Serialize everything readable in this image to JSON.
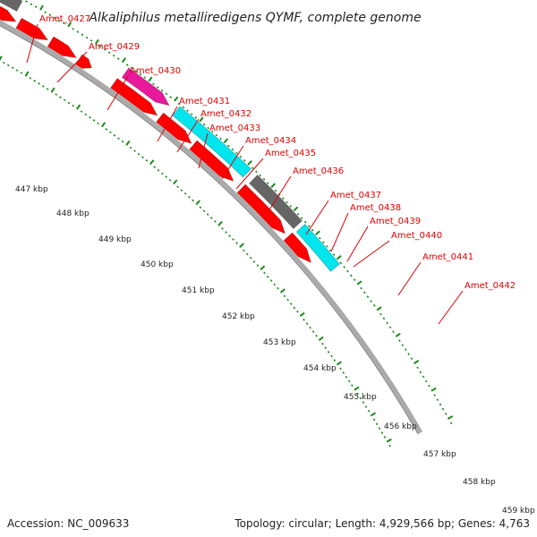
{
  "title": "Alkaliphilus metalliredigens QYMF, complete genome",
  "footer": {
    "accession": "Accession: NC_009633",
    "summary": "Topology: circular; Length: 4,929,566 bp; Genes: 4,763"
  },
  "colors": {
    "gene_red": "#ff0000",
    "gene_gray": "#666666",
    "gene_magenta": "#e8199b",
    "gene_cyan": "#00e5ee",
    "backbone": "#aaaaaa",
    "ticks": "#1a8a1a",
    "label_text": "#e00000"
  },
  "genes": [
    {
      "label": "Amet_0427"
    },
    {
      "label": "Amet_0429"
    },
    {
      "label": "Amet_0430"
    },
    {
      "label": "Amet_0431"
    },
    {
      "label": "Amet_0432"
    },
    {
      "label": "Amet_0433"
    },
    {
      "label": "Amet_0434"
    },
    {
      "label": "Amet_0435"
    },
    {
      "label": "Amet_0436"
    },
    {
      "label": "Amet_0437"
    },
    {
      "label": "Amet_0438"
    },
    {
      "label": "Amet_0439"
    },
    {
      "label": "Amet_0440"
    },
    {
      "label": "Amet_0441"
    },
    {
      "label": "Amet_0442"
    }
  ],
  "scale": {
    "labels": [
      "447 kbp",
      "448 kbp",
      "449 kbp",
      "450 kbp",
      "451 kbp",
      "452 kbp",
      "453 kbp",
      "454 kbp",
      "455 kbp",
      "456 kbp",
      "457 kbp",
      "458 kbp",
      "459 kbp"
    ]
  }
}
